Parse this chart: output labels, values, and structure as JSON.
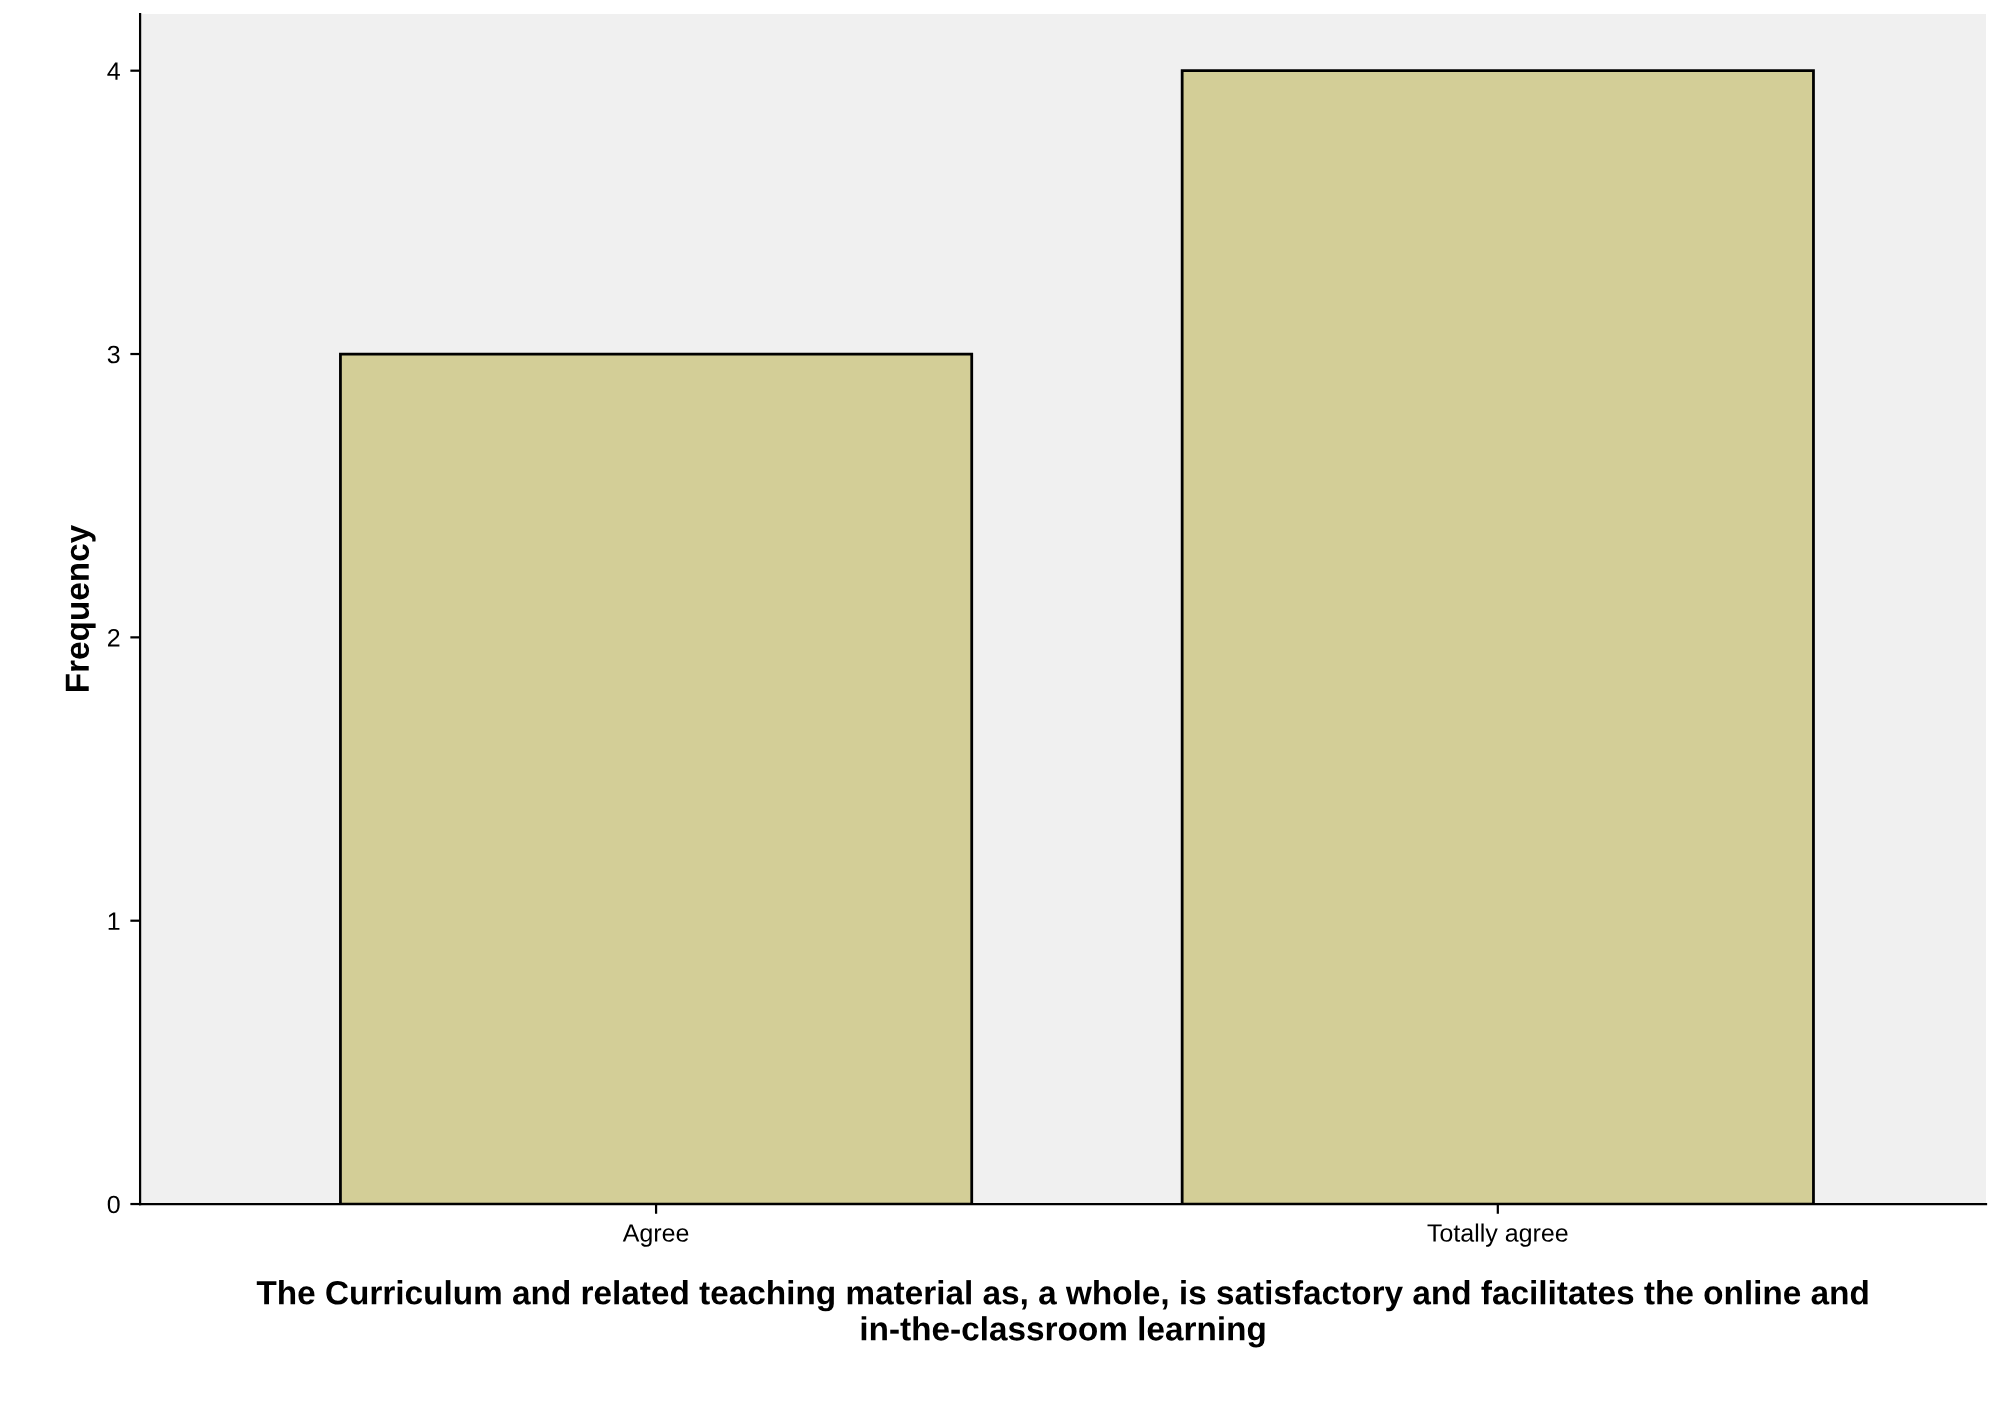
{
  "chart_data": {
    "type": "bar",
    "categories": [
      "Agree",
      "Totally agree"
    ],
    "values": [
      3,
      4
    ],
    "color": "#d3ce97",
    "xlabel": "The Curriculum and related teaching material as, a whole, is satisfactory and facilitates the online and in-the-classroom learning",
    "ylabel": "Frequency",
    "ylim": [
      0,
      4.2
    ],
    "yticks": [
      0,
      1,
      2,
      3,
      4
    ],
    "grid": false,
    "legend": false
  }
}
